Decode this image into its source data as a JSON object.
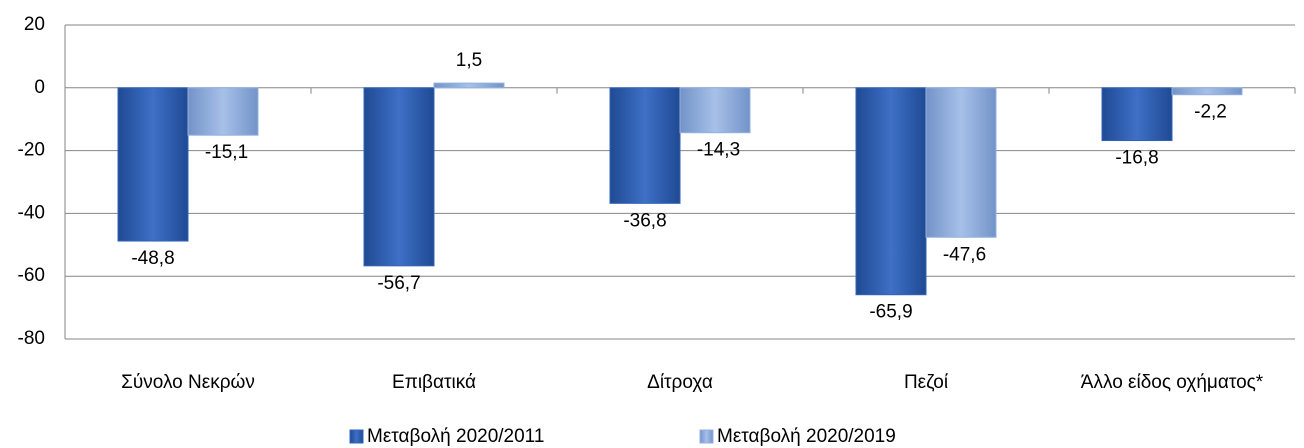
{
  "chart_data": {
    "type": "bar",
    "categories": [
      "Σύνολο Νεκρών",
      "Επιβατικά",
      "Δίτροχα",
      "Πεζοί",
      "Άλλο είδος οχήματος*"
    ],
    "series": [
      {
        "name": "Μεταβολή 2020/2011",
        "color": "#3363b8",
        "values": [
          -48.8,
          -56.7,
          -36.8,
          -65.9,
          -16.8
        ],
        "value_labels": [
          "-48,8",
          "-56,7",
          "-36,8",
          "-65,9",
          "-16,8"
        ]
      },
      {
        "name": "Μεταβολή 2020/2019",
        "color": "#93b1e0",
        "values": [
          -15.1,
          1.5,
          -14.3,
          -47.6,
          -2.2
        ],
        "value_labels": [
          "-15,1",
          "1,5",
          "-14,3",
          "-47,6",
          "-2,2"
        ]
      }
    ],
    "ylim": [
      -80,
      20
    ],
    "yticks": [
      -80,
      -60,
      -40,
      -20,
      0,
      20
    ],
    "grid": true,
    "legend": "bottom"
  }
}
